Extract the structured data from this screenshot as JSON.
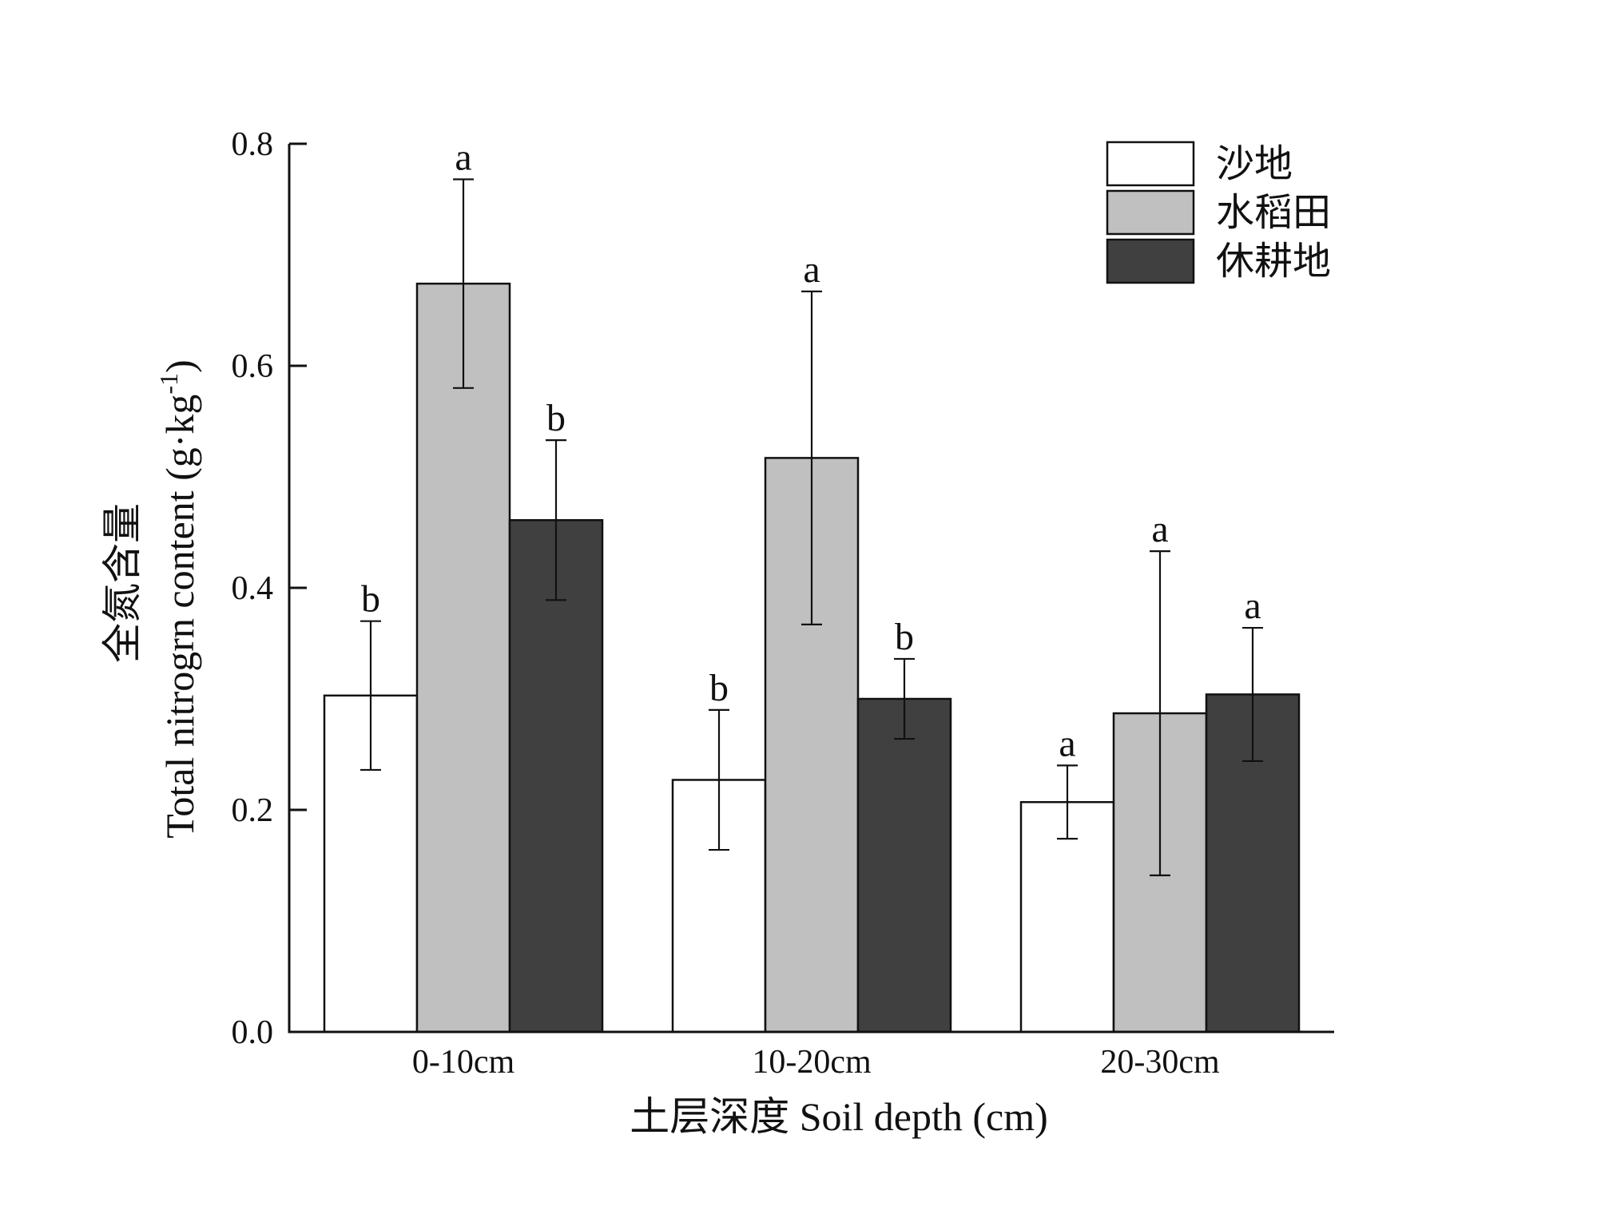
{
  "chart_data": {
    "type": "bar",
    "title": "",
    "xlabel": "土层深度 Soil depth (cm)",
    "ylabel": {
      "zh": "全氮含量",
      "en_main": "Total nitrogrn content (g·kg",
      "en_sup": "-1",
      "en_close": ")"
    },
    "ylim": [
      0,
      0.8
    ],
    "yticks": [
      "0.0",
      "0.2",
      "0.4",
      "0.6",
      "0.8"
    ],
    "categories": [
      "0-10cm",
      "10-20cm",
      "20-30cm"
    ],
    "legend_position": "top-right",
    "grid": false,
    "series": [
      {
        "name": "沙地",
        "color": "#ffffff",
        "values": [
          0.303,
          0.227,
          0.207
        ],
        "errors": [
          0.067,
          0.063,
          0.033
        ],
        "letters": [
          "b",
          "b",
          "a"
        ]
      },
      {
        "name": "水稻田",
        "color": "#c0c0c0",
        "values": [
          0.674,
          0.517,
          0.287
        ],
        "errors": [
          0.094,
          0.15,
          0.146
        ],
        "letters": [
          "a",
          "a",
          "a"
        ]
      },
      {
        "name": "休耕地",
        "color": "#404040",
        "values": [
          0.461,
          0.3,
          0.304
        ],
        "errors": [
          0.072,
          0.036,
          0.06
        ],
        "letters": [
          "b",
          "b",
          "a"
        ]
      }
    ]
  }
}
